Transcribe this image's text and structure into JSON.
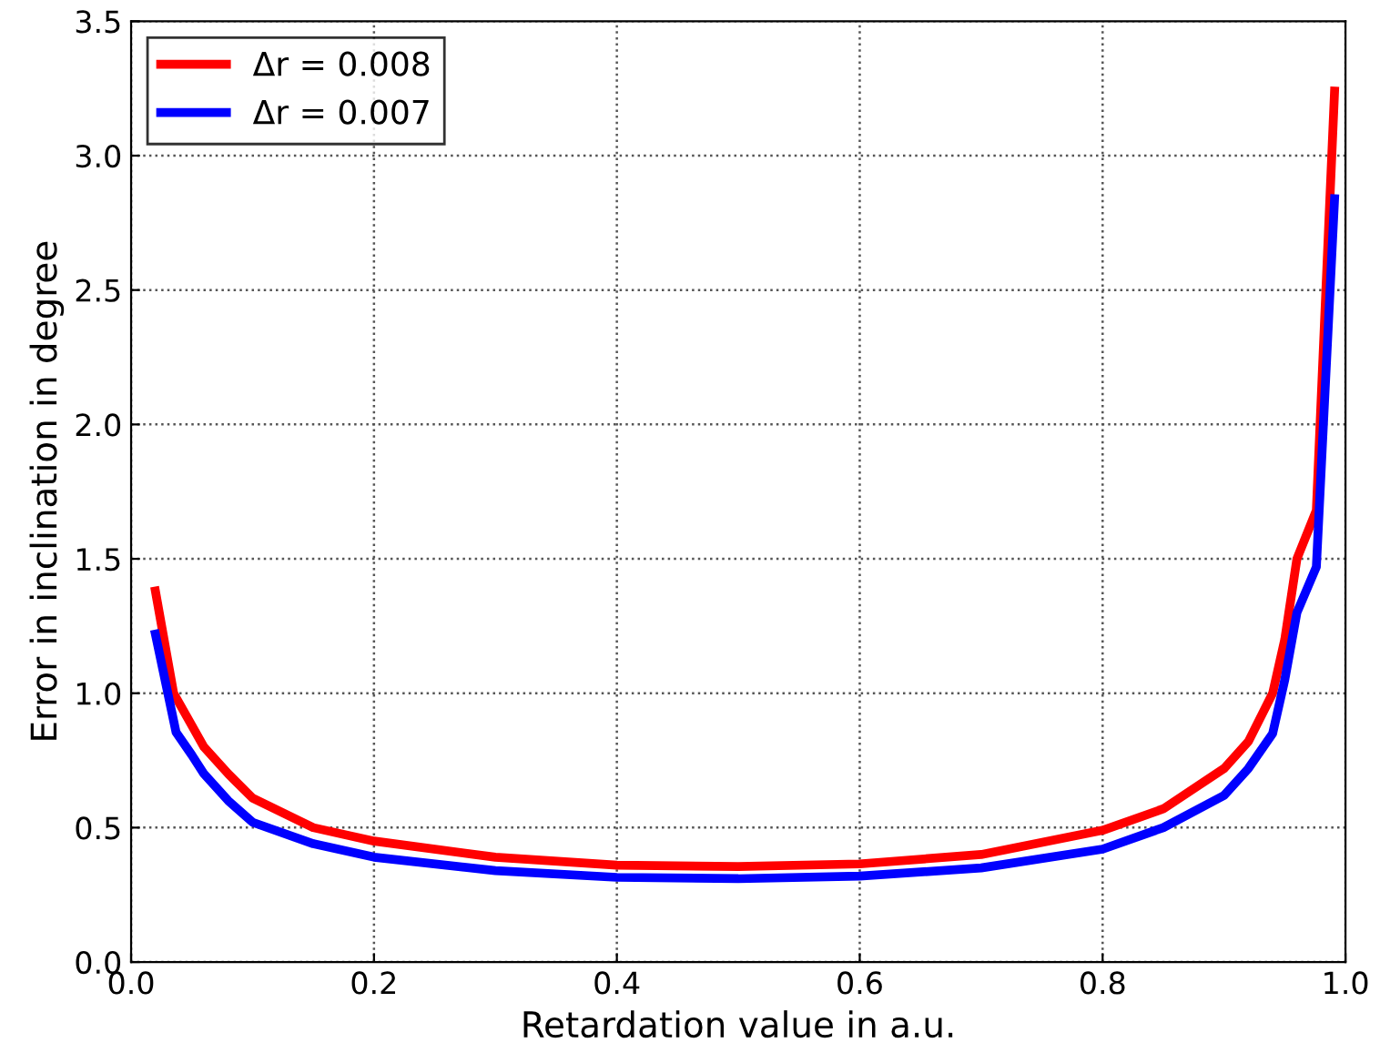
{
  "chart_data": {
    "type": "line",
    "xlabel": "Retardation value in a.u.",
    "ylabel": "Error in inclination in degree",
    "xlim": [
      0,
      1
    ],
    "ylim": [
      0,
      3.5
    ],
    "xticks": [
      {
        "value": 0,
        "label": "0.0"
      },
      0.2,
      0.4,
      0.6,
      0.8,
      {
        "value": 1,
        "label": "1.0"
      }
    ],
    "yticks": [
      {
        "value": 0,
        "label": "0.0"
      },
      0.5,
      {
        "value": 1,
        "label": "1.0"
      },
      1.5,
      {
        "value": 2,
        "label": "2.0"
      },
      2.5,
      {
        "value": 3,
        "label": "3.0"
      },
      3.5
    ],
    "grid": true,
    "legend": "top left",
    "line_style": "solid",
    "marker": "none",
    "series": [
      {
        "name": "Δr = 0.008",
        "color": "#ff0000",
        "x": [
          0.02,
          0.035,
          0.05,
          0.06,
          0.08,
          0.1,
          0.15,
          0.2,
          0.3,
          0.4,
          0.5,
          0.6,
          0.7,
          0.8,
          0.85,
          0.9,
          0.92,
          0.94,
          0.95,
          0.96,
          0.976,
          0.991
        ],
        "values": [
          1.38,
          1.0,
          0.88,
          0.8,
          0.7,
          0.61,
          0.5,
          0.45,
          0.39,
          0.36,
          0.355,
          0.365,
          0.4,
          0.49,
          0.57,
          0.72,
          0.82,
          1.0,
          1.2,
          1.5,
          1.68,
          3.24
        ]
      },
      {
        "name": "Δr = 0.007",
        "color": "#0000ff",
        "x": [
          0.02,
          0.037,
          0.05,
          0.06,
          0.08,
          0.1,
          0.15,
          0.2,
          0.3,
          0.4,
          0.5,
          0.6,
          0.7,
          0.8,
          0.85,
          0.9,
          0.92,
          0.94,
          0.95,
          0.96,
          0.976,
          0.991
        ],
        "values": [
          1.22,
          0.855,
          0.77,
          0.7,
          0.6,
          0.52,
          0.44,
          0.39,
          0.34,
          0.315,
          0.31,
          0.32,
          0.35,
          0.42,
          0.5,
          0.62,
          0.72,
          0.85,
          1.05,
          1.3,
          1.47,
          2.84
        ]
      }
    ]
  }
}
